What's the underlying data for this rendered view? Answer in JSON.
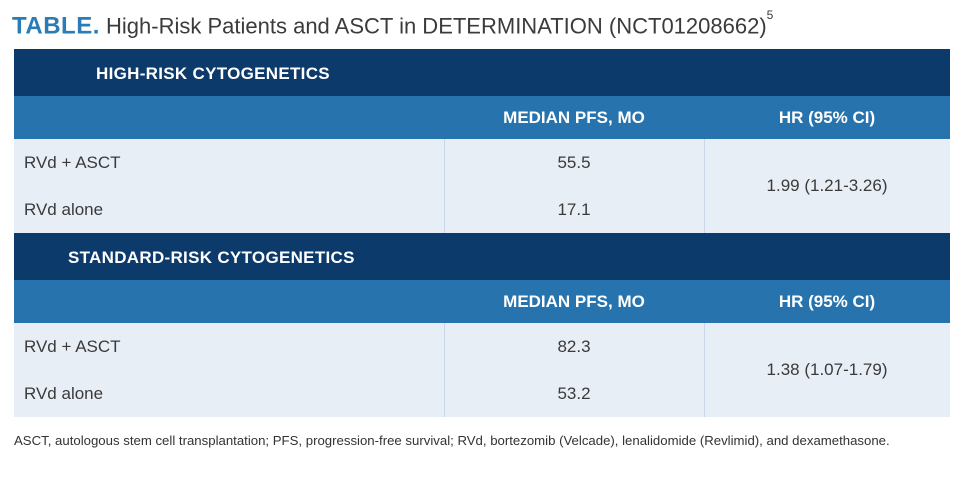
{
  "title": {
    "label": "TABLE.",
    "text": "High-Risk Patients and ASCT in DETERMINATION (NCT01208662)",
    "superscript": "5"
  },
  "sections": [
    {
      "heading": "HIGH-RISK CYTOGENETICS",
      "col_pfs": "MEDIAN PFS, MO",
      "col_hr": "HR (95% CI)",
      "rows": [
        {
          "arm": "RVd + ASCT",
          "pfs": "55.5"
        },
        {
          "arm": "RVd alone",
          "pfs": "17.1"
        }
      ],
      "hr": "1.99 (1.21-3.26)"
    },
    {
      "heading": "STANDARD-RISK CYTOGENETICS",
      "col_pfs": "MEDIAN PFS, MO",
      "col_hr": "HR (95% CI)",
      "rows": [
        {
          "arm": "RVd + ASCT",
          "pfs": "82.3"
        },
        {
          "arm": "RVd alone",
          "pfs": "53.2"
        }
      ],
      "hr": "1.38 (1.07-1.79)"
    }
  ],
  "footnote": "ASCT, autologous stem cell transplantation; PFS, progression-free survival; RVd, bortezomib (Velcade), lenalidomide (Revlimid), and dexamethasone.",
  "colors": {
    "title_label": "#2a7cb4",
    "band_dark": "#0c3a6b",
    "band_mid": "#2773ad",
    "body_fill": "#e8eef6"
  }
}
